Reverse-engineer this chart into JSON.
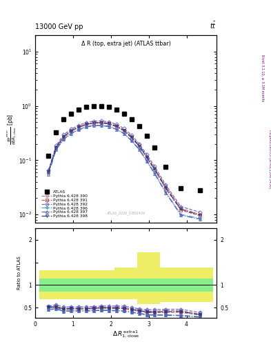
{
  "title_top": "13000 GeV pp",
  "title_top_right": "tt",
  "plot_title": "Δ R (top, extra jet) (ATLAS ttbar)",
  "ylabel_main": "dσ/dΔ R₁,close [pb]",
  "ylabel_ratio": "Ratio to ATLAS",
  "right_label": "Rivet 3.1.10, ≥ 3.1M events",
  "right_label2": "mcplots.cern.ch [arXiv:1306.3436]",
  "watermark": "ATLAS_2020_I1801434",
  "x_data": [
    0.35,
    0.55,
    0.75,
    0.95,
    1.15,
    1.35,
    1.55,
    1.75,
    1.95,
    2.15,
    2.35,
    2.55,
    2.75,
    2.95,
    3.15,
    3.45,
    3.85,
    4.35
  ],
  "x_bins": [
    0.1,
    0.5,
    0.7,
    0.9,
    1.1,
    1.3,
    1.5,
    1.7,
    1.9,
    2.1,
    2.3,
    2.5,
    2.7,
    2.9,
    3.1,
    3.3,
    3.7,
    4.2,
    4.7
  ],
  "atlas_y": [
    0.12,
    0.33,
    0.57,
    0.72,
    0.85,
    0.95,
    1.0,
    0.98,
    0.95,
    0.85,
    0.72,
    0.57,
    0.42,
    0.28,
    0.17,
    0.075,
    0.03,
    0.028
  ],
  "mc_390_y": [
    0.063,
    0.175,
    0.275,
    0.355,
    0.415,
    0.465,
    0.495,
    0.5,
    0.48,
    0.43,
    0.36,
    0.27,
    0.19,
    0.118,
    0.072,
    0.033,
    0.013,
    0.01
  ],
  "mc_391_y": [
    0.06,
    0.165,
    0.26,
    0.34,
    0.4,
    0.45,
    0.48,
    0.483,
    0.463,
    0.413,
    0.345,
    0.256,
    0.178,
    0.11,
    0.067,
    0.03,
    0.012,
    0.0095
  ],
  "mc_392_y": [
    0.065,
    0.185,
    0.295,
    0.375,
    0.44,
    0.495,
    0.525,
    0.528,
    0.508,
    0.458,
    0.383,
    0.288,
    0.2,
    0.127,
    0.078,
    0.035,
    0.014,
    0.011
  ],
  "mc_396_y": [
    0.06,
    0.16,
    0.245,
    0.315,
    0.37,
    0.415,
    0.44,
    0.442,
    0.422,
    0.375,
    0.313,
    0.232,
    0.16,
    0.098,
    0.059,
    0.026,
    0.01,
    0.0085
  ],
  "mc_397_y": [
    0.055,
    0.155,
    0.24,
    0.308,
    0.362,
    0.407,
    0.432,
    0.434,
    0.414,
    0.367,
    0.306,
    0.226,
    0.156,
    0.095,
    0.057,
    0.025,
    0.0097,
    0.0082
  ],
  "mc_398_y": [
    0.062,
    0.172,
    0.27,
    0.348,
    0.408,
    0.457,
    0.487,
    0.49,
    0.47,
    0.42,
    0.352,
    0.262,
    0.183,
    0.114,
    0.069,
    0.031,
    0.0125,
    0.0098
  ],
  "atlas_color": "#000000",
  "c390": "#c87090",
  "c391": "#c85050",
  "c392": "#7070c8",
  "c396": "#50a0c8",
  "c397": "#5060c8",
  "c398": "#303878",
  "xmin": 0.0,
  "xmax": 4.8,
  "ymin": 0.007,
  "ymax": 20,
  "ratio_ymin": 0.28,
  "ratio_ymax": 2.25,
  "green_band_lo": 0.85,
  "green_band_hi": 1.15,
  "yellow_band_lo": [
    0.68,
    0.68,
    0.68,
    0.68,
    0.68,
    0.68,
    0.68,
    0.68,
    0.68,
    0.68,
    0.68,
    0.68,
    0.58,
    0.58,
    0.58,
    0.62,
    0.62,
    0.62
  ],
  "yellow_band_hi": [
    1.32,
    1.32,
    1.32,
    1.32,
    1.32,
    1.32,
    1.32,
    1.32,
    1.32,
    1.38,
    1.38,
    1.38,
    1.72,
    1.72,
    1.72,
    1.38,
    1.38,
    1.38
  ]
}
